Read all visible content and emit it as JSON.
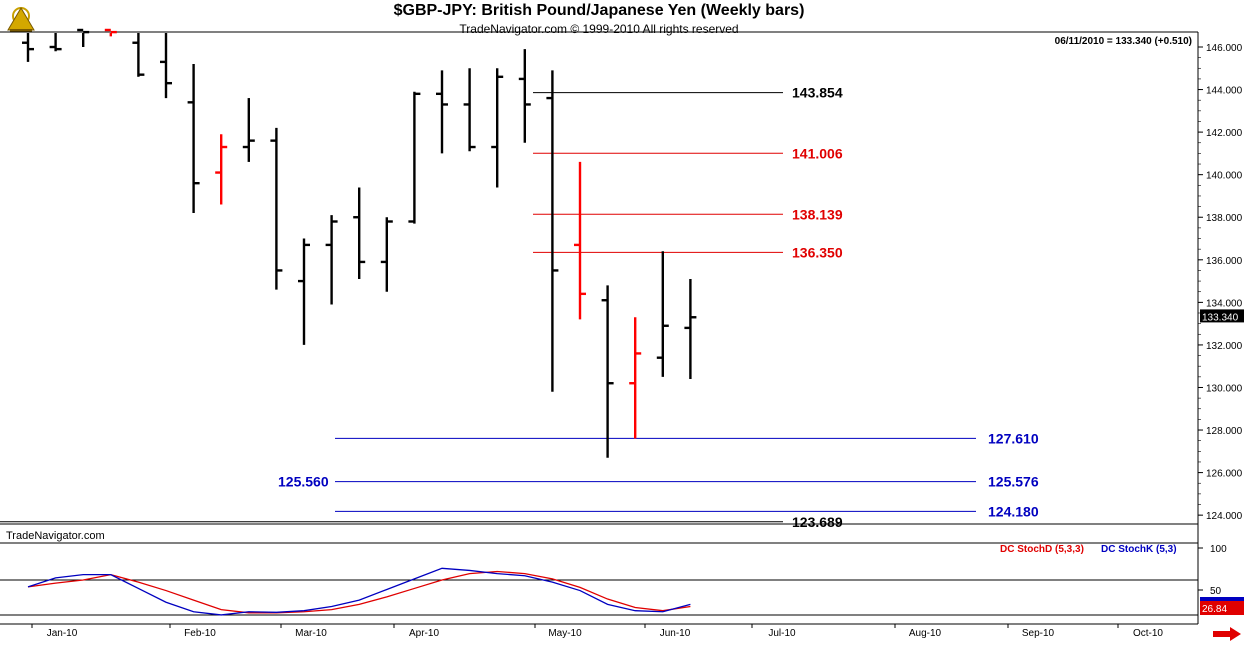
{
  "header": {
    "title": "$GBP-JPY:  British Pound/Japanese Yen  (Weekly bars)",
    "subtitle": "TradeNavigator.com © 1999-2010 All rights reserved",
    "date_info": "06/11/2010 = 133.340 (+0.510)"
  },
  "footer": {
    "brand": "TradeNavigator.com",
    "stoch_d_label": "DC  StochD (5,3,3)",
    "stoch_k_label": "DC  StochK (5,3)"
  },
  "colors": {
    "up_bar": "#000000",
    "down_bar": "#ff0000",
    "blue": "#0000c0",
    "red": "#e00000",
    "grid": "#000000"
  },
  "chart_data": [
    {
      "type": "ohlc",
      "title": "$GBP-JPY:  British Pound/Japanese Yen  (Weekly bars)",
      "y_axis_ticks": [
        "146.000",
        "144.000",
        "142.000",
        "140.000",
        "138.000",
        "136.000",
        "134.000",
        "132.000",
        "130.000",
        "128.000",
        "126.000",
        "124.000"
      ],
      "ylim": [
        123.5,
        147.0
      ],
      "x_tick_labels": [
        "Jan-10",
        "Feb-10",
        "Mar-10",
        "Apr-10",
        "May-10",
        "Jun-10",
        "Jul-10",
        "Aug-10",
        "Sep-10",
        "Oct-10"
      ],
      "last_price_label": "133.340",
      "bars": [
        {
          "w": 1,
          "o": 146.2,
          "h": 146.8,
          "l": 145.3,
          "c": 145.9,
          "color": "black"
        },
        {
          "w": 2,
          "o": 146.0,
          "h": 146.8,
          "l": 145.8,
          "c": 145.9,
          "color": "black"
        },
        {
          "w": 3,
          "o": 146.8,
          "h": 146.8,
          "l": 146.0,
          "c": 146.7,
          "color": "black"
        },
        {
          "w": 4,
          "o": 146.8,
          "h": 146.8,
          "l": 146.5,
          "c": 146.7,
          "color": "red"
        },
        {
          "w": 5,
          "o": 146.2,
          "h": 146.8,
          "l": 144.6,
          "c": 144.7,
          "color": "black"
        },
        {
          "w": 6,
          "o": 145.3,
          "h": 146.8,
          "l": 143.6,
          "c": 144.3,
          "color": "black"
        },
        {
          "w": 7,
          "o": 143.4,
          "h": 145.2,
          "l": 138.2,
          "c": 139.6,
          "color": "black"
        },
        {
          "w": 8,
          "o": 140.1,
          "h": 141.9,
          "l": 138.6,
          "c": 141.3,
          "color": "red"
        },
        {
          "w": 9,
          "o": 141.3,
          "h": 143.6,
          "l": 140.6,
          "c": 141.6,
          "color": "black"
        },
        {
          "w": 10,
          "o": 141.6,
          "h": 142.2,
          "l": 134.6,
          "c": 135.5,
          "color": "black"
        },
        {
          "w": 11,
          "o": 135.0,
          "h": 137.0,
          "l": 132.0,
          "c": 136.7,
          "color": "black"
        },
        {
          "w": 12,
          "o": 136.7,
          "h": 138.1,
          "l": 133.9,
          "c": 137.8,
          "color": "black"
        },
        {
          "w": 13,
          "o": 138.0,
          "h": 139.4,
          "l": 135.1,
          "c": 135.9,
          "color": "black"
        },
        {
          "w": 14,
          "o": 135.9,
          "h": 138.0,
          "l": 134.5,
          "c": 137.8,
          "color": "black"
        },
        {
          "w": 15,
          "o": 137.8,
          "h": 143.9,
          "l": 137.7,
          "c": 143.8,
          "color": "black"
        },
        {
          "w": 16,
          "o": 143.8,
          "h": 144.9,
          "l": 141.0,
          "c": 143.3,
          "color": "black"
        },
        {
          "w": 17,
          "o": 143.3,
          "h": 145.0,
          "l": 141.1,
          "c": 141.3,
          "color": "black"
        },
        {
          "w": 18,
          "o": 141.3,
          "h": 145.0,
          "l": 139.4,
          "c": 144.6,
          "color": "black"
        },
        {
          "w": 19,
          "o": 144.5,
          "h": 145.9,
          "l": 141.5,
          "c": 143.3,
          "color": "black"
        },
        {
          "w": 20,
          "o": 143.6,
          "h": 144.9,
          "l": 129.8,
          "c": 135.5,
          "color": "black"
        },
        {
          "w": 21,
          "o": 136.7,
          "h": 140.6,
          "l": 133.2,
          "c": 134.4,
          "color": "red"
        },
        {
          "w": 22,
          "o": 134.1,
          "h": 134.8,
          "l": 126.7,
          "c": 130.2,
          "color": "black"
        },
        {
          "w": 23,
          "o": 130.2,
          "h": 133.3,
          "l": 127.6,
          "c": 131.6,
          "color": "red"
        },
        {
          "w": 24,
          "o": 131.4,
          "h": 136.4,
          "l": 130.5,
          "c": 132.9,
          "color": "black"
        },
        {
          "w": 25,
          "o": 132.8,
          "h": 135.1,
          "l": 130.4,
          "c": 133.3,
          "color": "black"
        }
      ],
      "levels": [
        {
          "value": 143.854,
          "label": "143.854",
          "color": "black"
        },
        {
          "value": 141.006,
          "label": "141.006",
          "color": "red"
        },
        {
          "value": 138.139,
          "label": "138.139",
          "color": "red"
        },
        {
          "value": 136.35,
          "label": "136.350",
          "color": "red"
        },
        {
          "value": 127.61,
          "label": "127.610",
          "color": "blue"
        },
        {
          "value": 125.576,
          "label": "125.576",
          "left_label": "125.560",
          "color": "blue"
        },
        {
          "value": 124.18,
          "label": "124.180",
          "color": "blue"
        },
        {
          "value": 123.689,
          "label": "123.689",
          "color": "black"
        }
      ]
    },
    {
      "type": "line",
      "title": "",
      "y_axis_ticks": [
        "100",
        "50"
      ],
      "ylim": [
        0,
        100
      ],
      "last_value_label": "26.84",
      "series": [
        {
          "name": "DC  StochD (5,3,3)",
          "color": "red",
          "x": [
            1,
            2,
            3,
            4,
            5,
            6,
            7,
            8,
            9,
            10,
            11,
            12,
            13,
            14,
            15,
            16,
            17,
            18,
            19,
            20,
            21,
            22,
            23,
            24,
            25
          ],
          "values": [
            55,
            62,
            68,
            78,
            64,
            48,
            30,
            12,
            6,
            6,
            8,
            12,
            22,
            36,
            52,
            68,
            80,
            84,
            80,
            70,
            54,
            32,
            16,
            10,
            18
          ]
        },
        {
          "name": "DC  StochK (5,3)",
          "color": "blue",
          "x": [
            1,
            2,
            3,
            4,
            5,
            6,
            7,
            8,
            9,
            10,
            11,
            12,
            13,
            14,
            15,
            16,
            17,
            18,
            19,
            20,
            21,
            22,
            23,
            24,
            25
          ],
          "values": [
            55,
            72,
            78,
            78,
            52,
            26,
            8,
            2,
            8,
            7,
            10,
            18,
            30,
            50,
            70,
            90,
            86,
            80,
            76,
            64,
            48,
            22,
            10,
            8,
            22
          ]
        }
      ]
    }
  ]
}
